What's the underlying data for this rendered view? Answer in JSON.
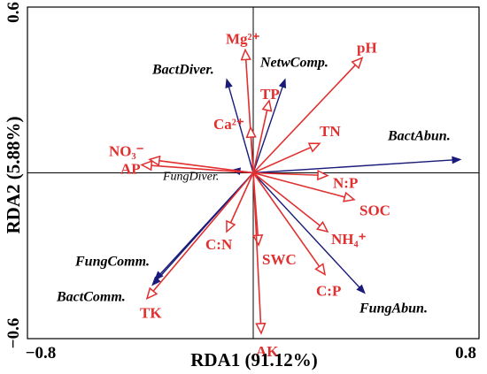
{
  "chart_data": {
    "type": "scatter",
    "subtype": "rda-biplot",
    "xlabel": "RDA1 (91.12%)",
    "ylabel": "RDA2 (5.88%)",
    "xlim": [
      -0.85,
      0.85
    ],
    "ylim": [
      -0.62,
      0.62
    ],
    "xticks": [
      "−0.8",
      "0.8"
    ],
    "yticks": [
      "0.6",
      "−0.6"
    ],
    "xtick_values": [
      -0.8,
      0.8
    ],
    "ytick_values": [
      0.6,
      -0.6
    ],
    "colors": {
      "environment": "#e03030",
      "microbial": "#1a1a7a",
      "axis": "#000000"
    },
    "environment_vectors": [
      {
        "label": "Mg²⁺",
        "x": -0.03,
        "y": 0.46
      },
      {
        "label": "pH",
        "x": 0.41,
        "y": 0.43
      },
      {
        "label": "TP",
        "x": 0.06,
        "y": 0.27
      },
      {
        "label": "Ca²⁺",
        "x": -0.01,
        "y": 0.17
      },
      {
        "label": "TN",
        "x": 0.25,
        "y": 0.11
      },
      {
        "label": "NO₃⁻",
        "x": -0.39,
        "y": 0.05
      },
      {
        "label": "AP",
        "x": -0.42,
        "y": 0.03
      },
      {
        "label": "N:P",
        "x": 0.28,
        "y": -0.01
      },
      {
        "label": "SOC",
        "x": 0.38,
        "y": -0.1
      },
      {
        "label": "NH₄⁺",
        "x": 0.28,
        "y": -0.22
      },
      {
        "label": "C:N",
        "x": -0.1,
        "y": -0.22
      },
      {
        "label": "SWC",
        "x": 0.02,
        "y": -0.27
      },
      {
        "label": "C:P",
        "x": 0.27,
        "y": -0.38
      },
      {
        "label": "TK",
        "x": -0.4,
        "y": -0.47
      },
      {
        "label": "AK",
        "x": 0.03,
        "y": -0.6
      }
    ],
    "microbial_vectors": [
      {
        "label": "BactAbun.",
        "x": 0.78,
        "y": 0.05
      },
      {
        "label": "NetwComp.",
        "x": 0.12,
        "y": 0.35
      },
      {
        "label": "BactDiver.",
        "x": -0.1,
        "y": 0.35
      },
      {
        "label": "FungDiver.",
        "x": -0.08,
        "y": 0.01
      },
      {
        "label": "FungComm.",
        "x": -0.37,
        "y": -0.4
      },
      {
        "label": "BactComm.",
        "x": -0.38,
        "y": -0.42
      },
      {
        "label": "FungAbun.",
        "x": 0.42,
        "y": -0.45
      }
    ]
  }
}
